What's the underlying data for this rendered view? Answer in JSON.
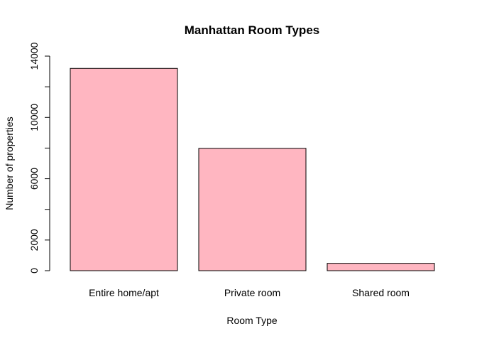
{
  "chart_data": {
    "type": "bar",
    "title": "Manhattan Room Types",
    "xlabel": "Room Type",
    "ylabel": "Number of properties",
    "categories": [
      "Entire home/apt",
      "Private room",
      "Shared room"
    ],
    "values": [
      13199,
      7982,
      480
    ],
    "ylim": [
      0,
      14000
    ],
    "yticks": [
      0,
      2000,
      4000,
      6000,
      8000,
      10000,
      12000,
      14000
    ],
    "ytick_labels": [
      "0",
      "2000",
      "",
      "6000",
      "",
      "10000",
      "",
      "14000"
    ],
    "bar_fill": "#FFB6C1",
    "bar_stroke": "#000000",
    "grid": false,
    "legend": "none"
  }
}
